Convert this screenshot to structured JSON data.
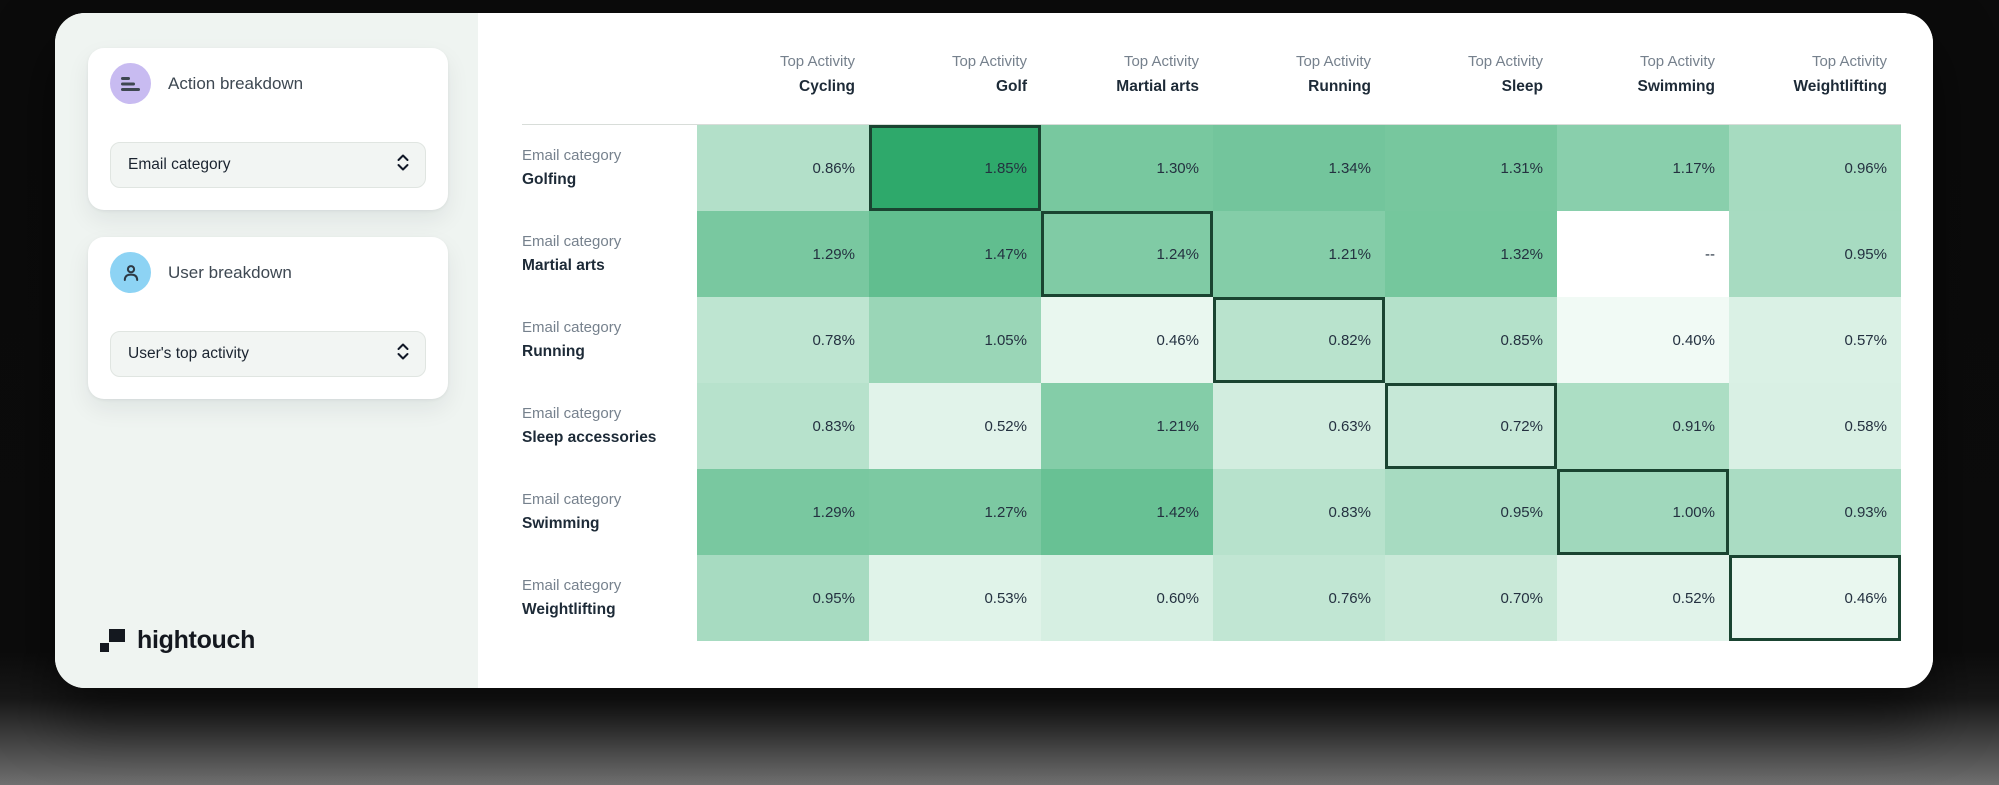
{
  "colors": {
    "accent_purple": "#C8BBF1",
    "accent_blue": "#8DD3F4",
    "sidebar_bg": "#EFF4F1",
    "card_bg": "#FFFFFF",
    "logo_color": "#14181F"
  },
  "sidebar": {
    "action_card": {
      "title": "Action breakdown",
      "icon": "bars-chart-icon",
      "select_value": "Email category",
      "select_icon": "chevron-up-down-icon"
    },
    "user_card": {
      "title": "User breakdown",
      "icon": "person-icon",
      "select_value": "User's top activity",
      "select_icon": "chevron-up-down-icon"
    },
    "logo_text": "hightouch"
  },
  "chart_data": {
    "type": "heatmap",
    "column_header_prefix": "Top Activity",
    "row_header_prefix": "Email category",
    "columns": [
      "Cycling",
      "Golf",
      "Martial arts",
      "Running",
      "Sleep",
      "Swimming",
      "Weightlifting"
    ],
    "rows": [
      "Golfing",
      "Martial arts",
      "Running",
      "Sleep accessories",
      "Swimming",
      "Weightlifting"
    ],
    "values": [
      [
        0.86,
        1.85,
        1.3,
        1.34,
        1.31,
        1.17,
        0.96
      ],
      [
        1.29,
        1.47,
        1.24,
        1.21,
        1.32,
        null,
        0.95
      ],
      [
        0.78,
        1.05,
        0.46,
        0.82,
        0.85,
        0.4,
        0.57
      ],
      [
        0.83,
        0.52,
        1.21,
        0.63,
        0.72,
        0.91,
        0.58
      ],
      [
        1.29,
        1.27,
        1.42,
        0.83,
        0.95,
        1.0,
        0.93
      ],
      [
        0.95,
        0.53,
        0.6,
        0.76,
        0.7,
        0.52,
        0.46
      ]
    ],
    "value_format": "percent_2dp",
    "null_display": "--",
    "highlighted_cells": [
      [
        0,
        1
      ],
      [
        1,
        2
      ],
      [
        2,
        3
      ],
      [
        3,
        4
      ],
      [
        4,
        5
      ],
      [
        5,
        6
      ]
    ],
    "color_scale": {
      "min_value": 0.4,
      "max_value": 1.85,
      "min_color": "#F1FAF5",
      "max_color": "#2EA96B",
      "null_color": "#FFFFFF",
      "highlight_border_color": "#1A4431"
    },
    "legend_position": "none",
    "grid": false
  }
}
